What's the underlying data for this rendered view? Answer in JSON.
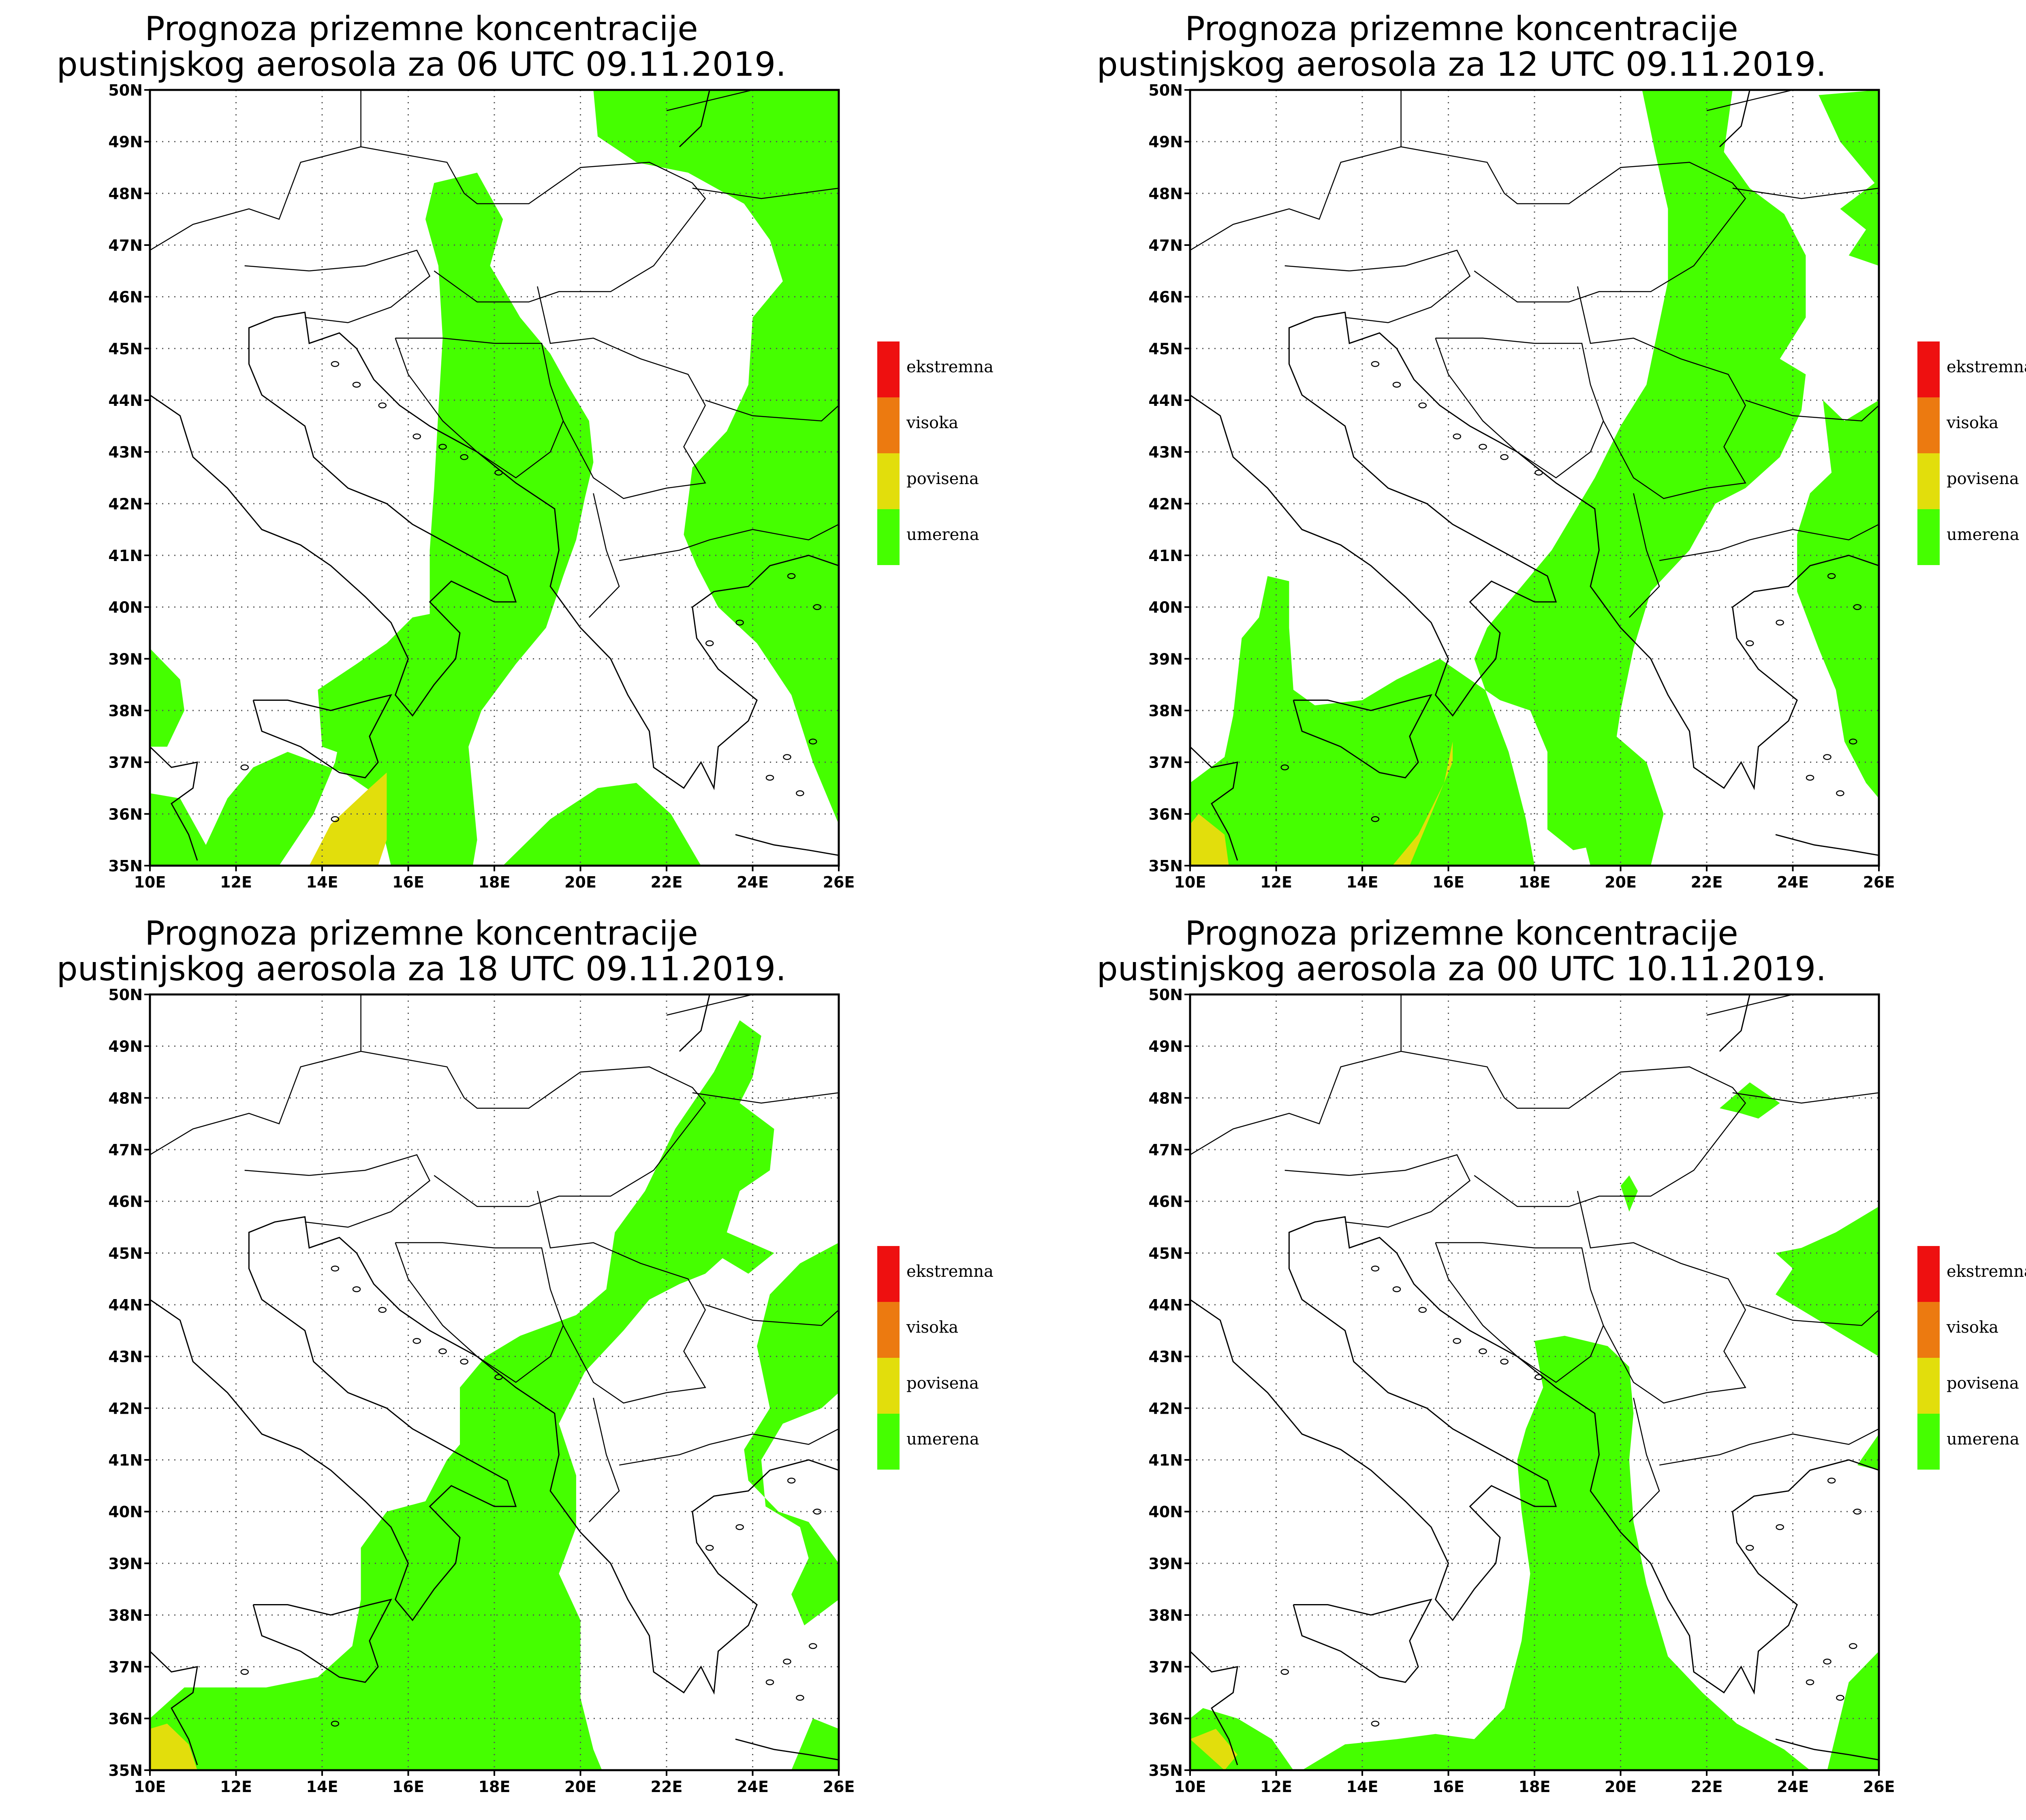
{
  "legend": {
    "items": [
      {
        "label": "ekstremna",
        "color": "#ee1010"
      },
      {
        "label": "visoka",
        "color": "#ec7a10"
      },
      {
        "label": "povisena",
        "color": "#e2de0c"
      },
      {
        "label": "umerena",
        "color": "#45ff00"
      }
    ]
  },
  "axes": {
    "lat_labels": [
      "50N",
      "49N",
      "48N",
      "47N",
      "46N",
      "45N",
      "44N",
      "43N",
      "42N",
      "41N",
      "40N",
      "39N",
      "38N",
      "37N",
      "36N",
      "35N"
    ],
    "lon_labels": [
      "10E",
      "12E",
      "14E",
      "16E",
      "18E",
      "20E",
      "22E",
      "24E",
      "26E"
    ]
  },
  "panels": [
    {
      "title_line1": "Prognoza prizemne koncentracije",
      "title_line2": "pustinjskog aerosola za 06 UTC 09.11.2019."
    },
    {
      "title_line1": "Prognoza prizemne koncentracije",
      "title_line2": "pustinjskog aerosola za 12 UTC 09.11.2019."
    },
    {
      "title_line1": "Prognoza prizemne koncentracije",
      "title_line2": "pustinjskog aerosola za 18 UTC 09.11.2019."
    },
    {
      "title_line1": "Prognoza prizemne koncentracije",
      "title_line2": "pustinjskog aerosola za 00 UTC 10.11.2019."
    }
  ]
}
